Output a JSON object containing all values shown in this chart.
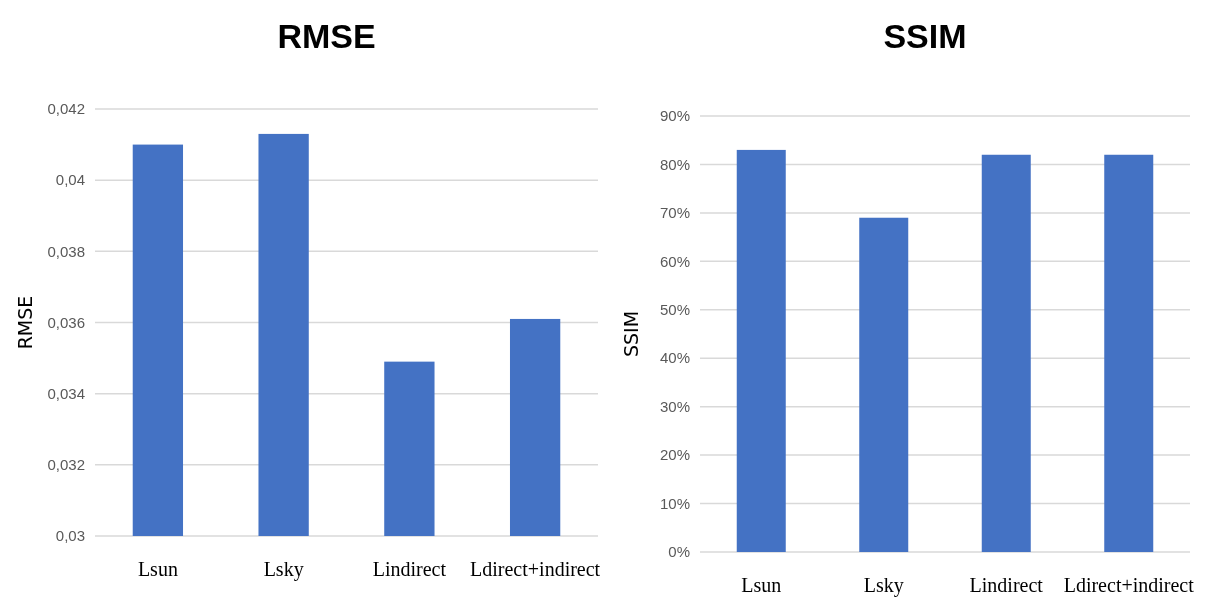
{
  "chart_data": [
    {
      "type": "bar",
      "title": "RMSE",
      "ylabel": "RMSE",
      "categories": [
        "Lsun",
        "Lsky",
        "Lindirect",
        "Ldirect+indirect"
      ],
      "values": [
        0.041,
        0.0413,
        0.0349,
        0.0361
      ],
      "color": "#4472c4",
      "ylim": [
        0.03,
        0.042
      ],
      "yticks": [
        {
          "value": 0.03,
          "label": "0,03"
        },
        {
          "value": 0.032,
          "label": "0,032"
        },
        {
          "value": 0.034,
          "label": "0,034"
        },
        {
          "value": 0.036,
          "label": "0,036"
        },
        {
          "value": 0.038,
          "label": "0,038"
        },
        {
          "value": 0.04,
          "label": "0,04"
        },
        {
          "value": 0.042,
          "label": "0,042"
        }
      ],
      "grid": "y"
    },
    {
      "type": "bar",
      "title": "SSIM",
      "ylabel": "SSIM",
      "categories": [
        "Lsun",
        "Lsky",
        "Lindirect",
        "Ldirect+indirect"
      ],
      "values": [
        83,
        69,
        82,
        82
      ],
      "color": "#4472c4",
      "ylim": [
        0,
        90
      ],
      "yticks": [
        {
          "value": 0,
          "label": "0%"
        },
        {
          "value": 10,
          "label": "10%"
        },
        {
          "value": 20,
          "label": "20%"
        },
        {
          "value": 30,
          "label": "30%"
        },
        {
          "value": 40,
          "label": "40%"
        },
        {
          "value": 50,
          "label": "50%"
        },
        {
          "value": 60,
          "label": "60%"
        },
        {
          "value": 70,
          "label": "70%"
        },
        {
          "value": 80,
          "label": "80%"
        },
        {
          "value": 90,
          "label": "90%"
        }
      ],
      "grid": "y"
    }
  ]
}
